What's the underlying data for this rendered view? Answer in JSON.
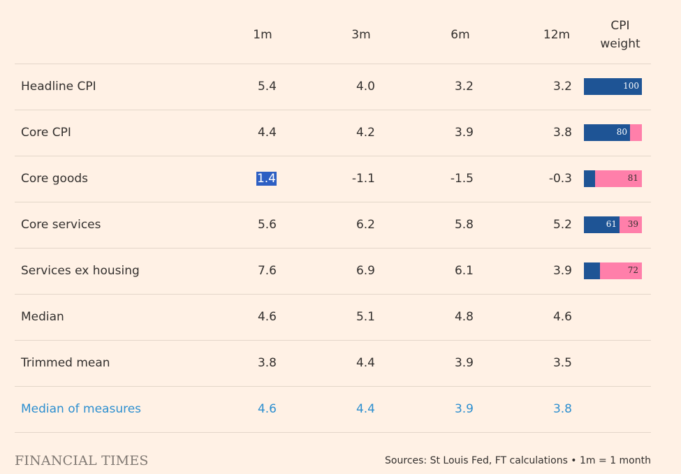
{
  "chart_data": {
    "type": "table",
    "columns": [
      "1m",
      "3m",
      "6m",
      "12m"
    ],
    "weight_header": [
      "CPI",
      "weight"
    ],
    "rows": [
      {
        "label": "Headline CPI",
        "values": [
          "5.4",
          "4.0",
          "3.2",
          "3.2"
        ],
        "weight": {
          "core": 100,
          "core_label": "100",
          "rest_label": ""
        }
      },
      {
        "label": "Core CPI",
        "values": [
          "4.4",
          "4.2",
          "3.9",
          "3.8"
        ],
        "weight": {
          "core": 80,
          "core_label": "80",
          "rest_label": ""
        }
      },
      {
        "label": "Core goods",
        "values": [
          "1.4",
          "-1.1",
          "-1.5",
          "-0.3"
        ],
        "highlight_col": 0,
        "weight": {
          "core": 19,
          "core_label": "",
          "rest_label": "81"
        }
      },
      {
        "label": "Core services",
        "values": [
          "5.6",
          "6.2",
          "5.8",
          "5.2"
        ],
        "weight": {
          "core": 61,
          "core_label": "61",
          "rest_label": "39"
        }
      },
      {
        "label": "Services ex housing",
        "values": [
          "7.6",
          "6.9",
          "6.1",
          "3.9"
        ],
        "weight": {
          "core": 28,
          "core_label": "",
          "rest_label": "72"
        }
      },
      {
        "label": "Median",
        "values": [
          "4.6",
          "5.1",
          "4.8",
          "4.6"
        ]
      },
      {
        "label": "Trimmed mean",
        "values": [
          "3.8",
          "4.4",
          "3.9",
          "3.5"
        ]
      },
      {
        "label": "Median of measures",
        "values": [
          "4.6",
          "4.4",
          "3.9",
          "3.8"
        ],
        "accent": true
      }
    ],
    "colors": {
      "core_weight": "#1e5495",
      "rest_weight": "#ff7faa",
      "accent_text": "#2d8fd0",
      "highlight": "#2d5fc3"
    }
  },
  "footer": {
    "logo": "FINANCIAL TIMES",
    "source": "Sources: St Louis Fed, FT calculations • 1m = 1 month"
  }
}
